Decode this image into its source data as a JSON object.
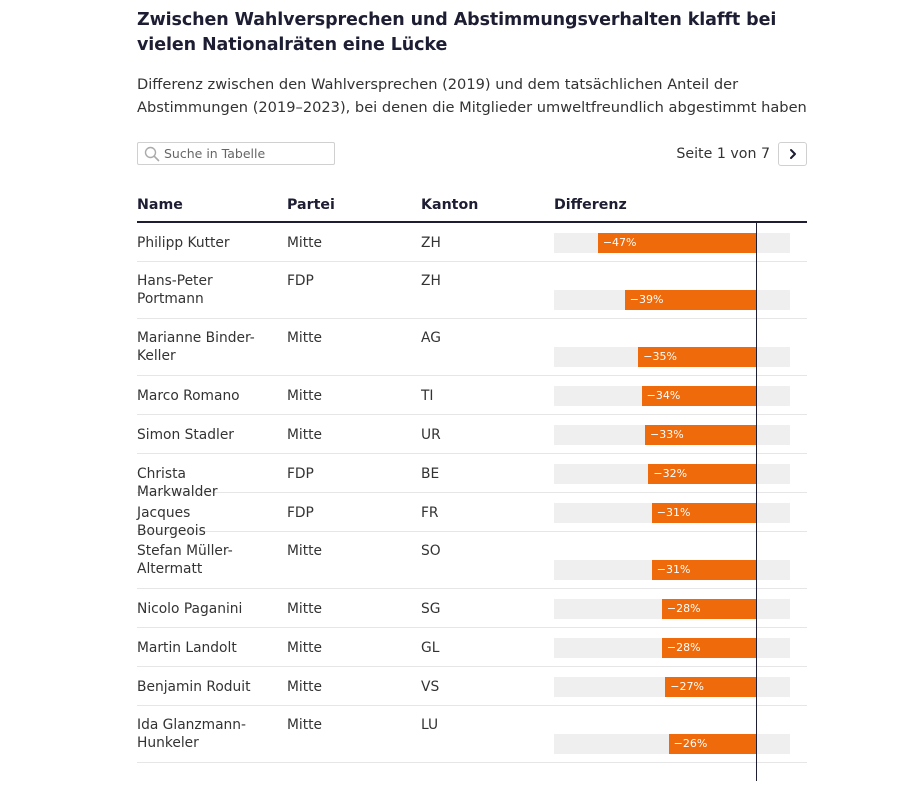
{
  "title": "Zwischen Wahlversprechen und Abstimmungsverhalten klafft bei vielen Nationalräten eine Lücke",
  "subtitle": "Differenz zwischen den Wahlversprechen (2019) und dem tatsächlichen Anteil der Abstimmungen (2019–2023), bei denen die Mitglieder umweltfreundlich abgestimmt haben",
  "search": {
    "placeholder": "Suche in Tabelle",
    "icon": "search-icon"
  },
  "pager": {
    "text": "Seite 1 von 7",
    "next_icon": "chevron-right-icon"
  },
  "columns": [
    "Name",
    "Partei",
    "Kanton",
    "Differenz"
  ],
  "colors": {
    "bar": "#ee6a0a",
    "track": "#efefef",
    "text": "#1d1d33"
  },
  "chart_data": {
    "type": "bar",
    "orientation": "horizontal",
    "xlim": [
      -60,
      10
    ],
    "rows": [
      {
        "name": "Philipp Kutter",
        "partei": "Mitte",
        "kanton": "ZH",
        "value": -47,
        "label": "−47%"
      },
      {
        "name": "Hans-Peter Portmann",
        "partei": "FDP",
        "kanton": "ZH",
        "value": -39,
        "label": "−39%"
      },
      {
        "name": "Marianne Binder-Keller",
        "partei": "Mitte",
        "kanton": "AG",
        "value": -35,
        "label": "−35%"
      },
      {
        "name": "Marco Romano",
        "partei": "Mitte",
        "kanton": "TI",
        "value": -34,
        "label": "−34%"
      },
      {
        "name": "Simon Stadler",
        "partei": "Mitte",
        "kanton": "UR",
        "value": -33,
        "label": "−33%"
      },
      {
        "name": "Christa Markwalder",
        "partei": "FDP",
        "kanton": "BE",
        "value": -32,
        "label": "−32%"
      },
      {
        "name": "Jacques Bourgeois",
        "partei": "FDP",
        "kanton": "FR",
        "value": -31,
        "label": "−31%"
      },
      {
        "name": "Stefan Müller-Altermatt",
        "partei": "Mitte",
        "kanton": "SO",
        "value": -31,
        "label": "−31%"
      },
      {
        "name": "Nicolo Paganini",
        "partei": "Mitte",
        "kanton": "SG",
        "value": -28,
        "label": "−28%"
      },
      {
        "name": "Martin Landolt",
        "partei": "Mitte",
        "kanton": "GL",
        "value": -28,
        "label": "−28%"
      },
      {
        "name": "Benjamin Roduit",
        "partei": "Mitte",
        "kanton": "VS",
        "value": -27,
        "label": "−27%"
      },
      {
        "name": "Ida Glanzmann-Hunkeler",
        "partei": "Mitte",
        "kanton": "LU",
        "value": -26,
        "label": "−26%"
      }
    ]
  }
}
